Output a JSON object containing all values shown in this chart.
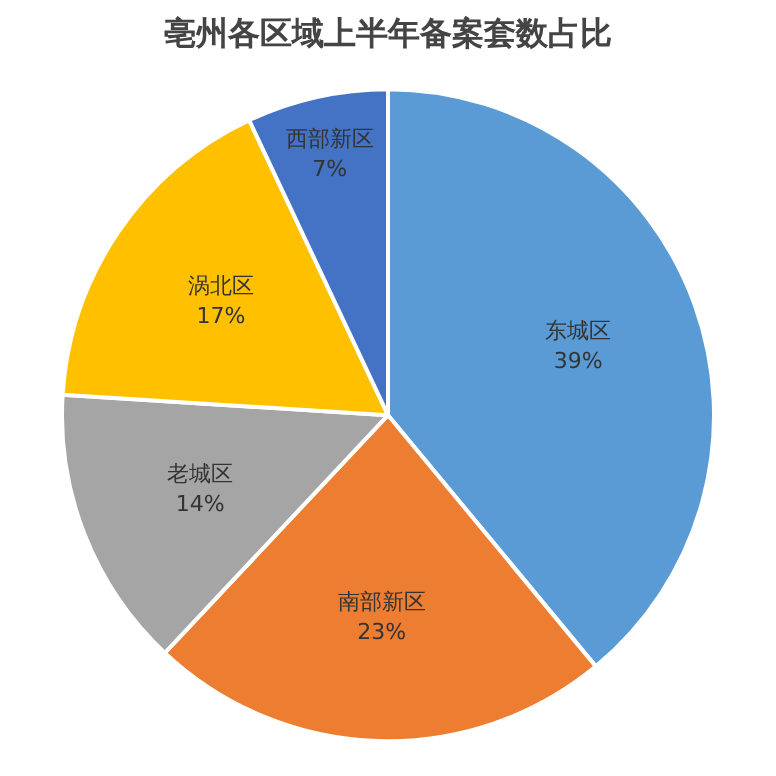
{
  "chart_data": {
    "type": "pie",
    "title": "亳州各区域上半年备案套数占比",
    "categories": [
      "东城区",
      "南部新区",
      "老城区",
      "涡北区",
      "西部新区"
    ],
    "values": [
      39,
      23,
      14,
      17,
      7
    ],
    "value_labels": [
      "39%",
      "23%",
      "14%",
      "17%",
      "7%"
    ],
    "colors": [
      "#5b9bd5",
      "#ed7d31",
      "#a5a5a5",
      "#ffc000",
      "#4472c4"
    ],
    "legend": false
  }
}
